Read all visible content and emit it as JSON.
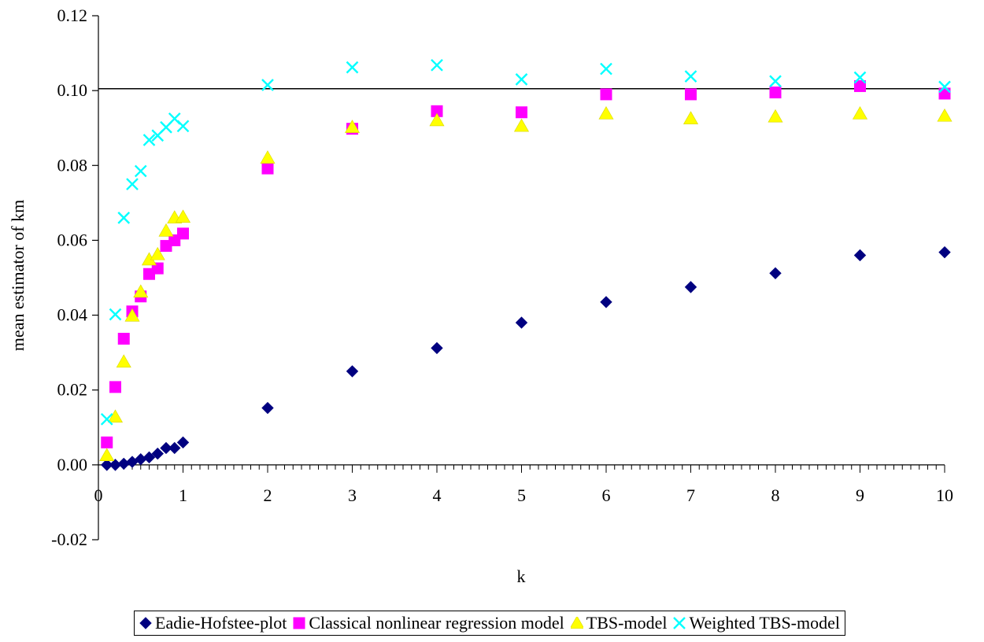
{
  "chart_data": {
    "type": "scatter",
    "title": "",
    "xlabel": "k",
    "ylabel": "mean estimator of km",
    "xlim": [
      0,
      10
    ],
    "ylim": [
      -0.02,
      0.12
    ],
    "x_ticks": [
      0,
      1,
      2,
      3,
      4,
      5,
      6,
      7,
      8,
      9,
      10
    ],
    "y_ticks": [
      -0.02,
      0.0,
      0.02,
      0.04,
      0.06,
      0.08,
      0.1,
      0.12
    ],
    "y_tick_labels": [
      "-0.02",
      "0.00",
      "0.02",
      "0.04",
      "0.06",
      "0.08",
      "0.10",
      "0.12"
    ],
    "x_tick_labels": [
      "0",
      "1",
      "2",
      "3",
      "4",
      "5",
      "6",
      "7",
      "8",
      "9",
      "10"
    ],
    "x_minor_step": 0.1,
    "reference_line": {
      "y": 0.1005
    },
    "legend_position": "bottom",
    "series": [
      {
        "name": "Eadie-Hofstee-plot",
        "marker": "diamond",
        "color": "#000080",
        "x": [
          0.1,
          0.2,
          0.3,
          0.4,
          0.5,
          0.6,
          0.7,
          0.8,
          0.9,
          1,
          2,
          3,
          4,
          5,
          6,
          7,
          8,
          9,
          10
        ],
        "y": [
          0.0,
          0.0,
          0.0003,
          0.0008,
          0.0015,
          0.002,
          0.003,
          0.0045,
          0.0045,
          0.006,
          0.0152,
          0.025,
          0.0312,
          0.038,
          0.0435,
          0.0475,
          0.0512,
          0.056,
          0.0568
        ]
      },
      {
        "name": "Classical nonlinear regression model",
        "marker": "square",
        "color": "#ff00ff",
        "x": [
          0.1,
          0.2,
          0.3,
          0.4,
          0.5,
          0.6,
          0.7,
          0.8,
          0.9,
          1,
          2,
          3,
          4,
          5,
          6,
          7,
          8,
          9,
          10
        ],
        "y": [
          0.006,
          0.0208,
          0.0337,
          0.041,
          0.045,
          0.051,
          0.0525,
          0.0585,
          0.06,
          0.0618,
          0.0792,
          0.0898,
          0.0945,
          0.0942,
          0.099,
          0.099,
          0.0995,
          0.1012,
          0.0992
        ]
      },
      {
        "name": "TBS-model",
        "marker": "triangle",
        "color": "#ffff00",
        "x": [
          0.1,
          0.2,
          0.3,
          0.4,
          0.5,
          0.6,
          0.7,
          0.8,
          0.9,
          1,
          2,
          3,
          4,
          5,
          6,
          7,
          8,
          9,
          10
        ],
        "y": [
          0.0025,
          0.0128,
          0.0275,
          0.0398,
          0.0462,
          0.0548,
          0.0562,
          0.0625,
          0.066,
          0.0662,
          0.082,
          0.0902,
          0.092,
          0.0905,
          0.0938,
          0.0925,
          0.093,
          0.0938,
          0.0932
        ]
      },
      {
        "name": "Weighted TBS-model",
        "marker": "x",
        "color": "#00ffff",
        "x": [
          0.1,
          0.2,
          0.3,
          0.4,
          0.5,
          0.6,
          0.7,
          0.8,
          0.9,
          1,
          2,
          3,
          4,
          5,
          6,
          7,
          8,
          9,
          10
        ],
        "y": [
          0.0122,
          0.0402,
          0.066,
          0.075,
          0.0785,
          0.0868,
          0.088,
          0.0902,
          0.0925,
          0.0905,
          0.1015,
          0.1062,
          0.1068,
          0.103,
          0.1058,
          0.1038,
          0.1025,
          0.1035,
          0.101
        ]
      }
    ]
  }
}
